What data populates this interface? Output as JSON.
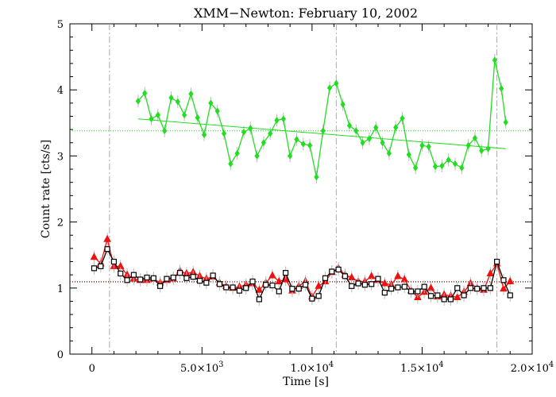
{
  "chart_data": {
    "type": "line",
    "title": "XMM−Newton: February 10, 2002",
    "xlabel": "Time [s]",
    "ylabel": "Count rate [cts/s]",
    "xlim": [
      -1000,
      20000
    ],
    "ylim": [
      0,
      5
    ],
    "x_ticks": [
      0,
      5000,
      10000,
      15000,
      20000
    ],
    "x_tick_labels": [
      "0",
      "5.0×10",
      "1.0×10",
      "1.5×10",
      "2.0×10"
    ],
    "x_tick_exponents": [
      "",
      "3",
      "4",
      "4",
      "4"
    ],
    "y_ticks": [
      0,
      1,
      2,
      3,
      4,
      5
    ],
    "y_tick_labels": [
      "0",
      "1",
      "2",
      "3",
      "4",
      "5"
    ],
    "vertical_lines_x": [
      800,
      11100,
      18400
    ],
    "series": [
      {
        "color": "#22dd22",
        "marker": "diamond",
        "x": [
          2100,
          2400,
          2700,
          3000,
          3300,
          3600,
          3900,
          4200,
          4500,
          4800,
          5100,
          5400,
          5700,
          6000,
          6300,
          6600,
          6900,
          7200,
          7500,
          7800,
          8100,
          8400,
          8700,
          9000,
          9300,
          9600,
          9900,
          10200,
          10500,
          10800,
          11100,
          11400,
          11700,
          12000,
          12300,
          12600,
          12900,
          13200,
          13500,
          13800,
          14100,
          14400,
          14700,
          15000,
          15300,
          15600,
          15900,
          16200,
          16500,
          16800,
          17100,
          17400,
          17700,
          18000,
          18300,
          18600,
          18800
        ],
        "y": [
          3.83,
          3.95,
          3.56,
          3.62,
          3.38,
          3.88,
          3.82,
          3.62,
          3.94,
          3.58,
          3.32,
          3.8,
          3.68,
          3.34,
          2.88,
          3.04,
          3.36,
          3.42,
          3.0,
          3.2,
          3.34,
          3.54,
          3.56,
          3.0,
          3.25,
          3.18,
          3.16,
          2.68,
          3.38,
          4.03,
          4.1,
          3.78,
          3.46,
          3.38,
          3.2,
          3.26,
          3.43,
          3.2,
          3.04,
          3.43,
          3.57,
          3.02,
          2.82,
          3.16,
          3.14,
          2.84,
          2.85,
          2.94,
          2.88,
          2.82,
          3.16,
          3.27,
          3.08,
          3.11,
          4.45,
          4.02,
          3.51
        ],
        "trend": {
          "x": [
            2100,
            18800
          ],
          "y": [
            3.56,
            3.11
          ]
        },
        "mean": 3.38
      },
      {
        "color": "#ee1111",
        "marker": "triangle",
        "x": [
          100,
          400,
          700,
          1000,
          1300,
          1600,
          1900,
          2200,
          2500,
          2800,
          3100,
          3400,
          3700,
          4000,
          4300,
          4600,
          4900,
          5200,
          5500,
          5800,
          6100,
          6400,
          6700,
          7000,
          7300,
          7600,
          7900,
          8200,
          8500,
          8800,
          9100,
          9400,
          9700,
          10000,
          10300,
          10600,
          10900,
          11200,
          11500,
          11800,
          12100,
          12400,
          12700,
          13000,
          13300,
          13600,
          13900,
          14200,
          14500,
          14800,
          15100,
          15400,
          15700,
          16000,
          16300,
          16600,
          16900,
          17200,
          17500,
          17800,
          18100,
          18400,
          18700,
          19000
        ],
        "y": [
          1.47,
          1.37,
          1.74,
          1.33,
          1.33,
          1.2,
          1.14,
          1.12,
          1.12,
          1.14,
          1.08,
          1.12,
          1.14,
          1.26,
          1.22,
          1.24,
          1.18,
          1.14,
          1.17,
          1.08,
          1.03,
          1.0,
          1.02,
          1.05,
          1.07,
          0.97,
          1.08,
          1.19,
          1.1,
          1.13,
          0.96,
          1.03,
          1.1,
          0.87,
          1.03,
          1.1,
          1.24,
          1.3,
          1.2,
          1.16,
          1.1,
          1.1,
          1.18,
          1.12,
          1.07,
          1.05,
          1.18,
          1.13,
          0.96,
          0.86,
          0.94,
          1.0,
          0.87,
          0.9,
          0.88,
          0.86,
          0.94,
          1.07,
          1.0,
          0.97,
          1.22,
          1.37,
          0.99,
          1.1
        ],
        "mean": 1.1
      },
      {
        "color": "#000000",
        "marker": "square",
        "x": [
          100,
          400,
          700,
          1000,
          1300,
          1600,
          1900,
          2200,
          2500,
          2800,
          3100,
          3400,
          3700,
          4000,
          4300,
          4600,
          4900,
          5200,
          5500,
          5800,
          6100,
          6400,
          6700,
          7000,
          7300,
          7600,
          7900,
          8200,
          8500,
          8800,
          9100,
          9400,
          9700,
          10000,
          10300,
          10600,
          10900,
          11200,
          11500,
          11800,
          12100,
          12400,
          12700,
          13000,
          13300,
          13600,
          13900,
          14200,
          14500,
          14800,
          15100,
          15400,
          15700,
          16000,
          16300,
          16600,
          16900,
          17200,
          17500,
          17800,
          18100,
          18400,
          18700,
          19000
        ],
        "y": [
          1.3,
          1.33,
          1.59,
          1.4,
          1.22,
          1.12,
          1.2,
          1.13,
          1.16,
          1.15,
          1.03,
          1.14,
          1.16,
          1.23,
          1.15,
          1.17,
          1.11,
          1.08,
          1.19,
          1.06,
          1.01,
          1.01,
          0.96,
          1.0,
          1.1,
          0.83,
          1.05,
          1.04,
          0.95,
          1.23,
          0.99,
          0.99,
          1.05,
          0.84,
          0.88,
          1.15,
          1.25,
          1.28,
          1.18,
          1.03,
          1.07,
          1.05,
          1.06,
          1.14,
          0.93,
          0.99,
          1.01,
          1.02,
          0.95,
          0.95,
          1.02,
          0.88,
          0.89,
          0.83,
          0.83,
          1.0,
          0.89,
          1.0,
          0.99,
          1.0,
          1.0,
          1.4,
          1.12,
          0.89
        ],
        "mean": 1.09
      }
    ]
  }
}
